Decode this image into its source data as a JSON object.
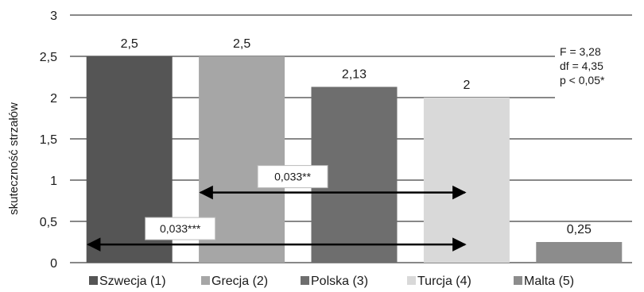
{
  "chart_data": {
    "type": "bar",
    "title": "",
    "xlabel": "",
    "ylabel": "skuteczność strzałów",
    "ylim": [
      0,
      3
    ],
    "yticks": [
      "0",
      "0,5",
      "1",
      "1,5",
      "2",
      "2,5",
      "3"
    ],
    "grid": true,
    "legend_position": "bottom",
    "categories": [
      "Szwecja (1)",
      "Grecja (2)",
      "Polska (3)",
      "Turcja (4)",
      "Malta (5)"
    ],
    "values": [
      2.5,
      2.5,
      2.13,
      2,
      0.25
    ],
    "value_labels": [
      "2,5",
      "2,5",
      "2,13",
      "2",
      "0,25"
    ],
    "colors": [
      "#555555",
      "#a6a6a6",
      "#6e6e6e",
      "#d9d9d9",
      "#8c8c8c"
    ],
    "stats_box": [
      "F = 3,28",
      "df = 4,35",
      "p < 0,05*"
    ],
    "comparisons": [
      {
        "from": 2,
        "to": 4,
        "y": 0.85,
        "label": "0,033**"
      },
      {
        "from": 1,
        "to": 4,
        "y": 0.22,
        "label": "0,033***"
      }
    ]
  }
}
